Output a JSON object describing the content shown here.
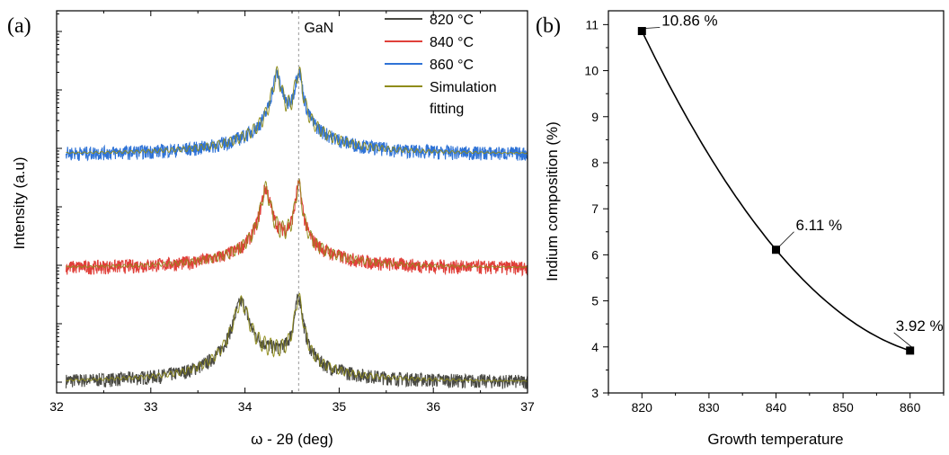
{
  "chart_data": [
    {
      "panel": "(a)",
      "type": "line",
      "xlabel": "ω - 2θ (deg)",
      "ylabel": "Intensity (a.u)",
      "xlim": [
        32,
        37
      ],
      "x_ticks": [
        "32",
        "33",
        "34",
        "35",
        "36",
        "37"
      ],
      "y_scale": "log",
      "reference_line": {
        "label": "GaN",
        "x": 34.57
      },
      "legend": {
        "position": "top-right"
      },
      "series": [
        {
          "name": "820 °C",
          "color": "#4a4a44",
          "peak_x": [
            33.96,
            34.57
          ]
        },
        {
          "name": "840 °C",
          "color": "#e0403a",
          "peak_x": [
            34.22,
            34.57
          ]
        },
        {
          "name": "860 °C",
          "color": "#2f73d6",
          "peak_x": [
            34.34,
            34.57
          ]
        },
        {
          "name": "Simulation fitting",
          "color": "#8f8c1a"
        }
      ]
    },
    {
      "panel": "(b)",
      "type": "scatter",
      "xlabel": "Growth temperature",
      "ylabel": "Indium composition (%)",
      "xlim": [
        815,
        865
      ],
      "ylim": [
        3,
        11.3
      ],
      "x_ticks": [
        "820",
        "830",
        "840",
        "850",
        "860"
      ],
      "y_ticks": [
        "3",
        "4",
        "5",
        "6",
        "7",
        "8",
        "9",
        "10",
        "11"
      ],
      "x": [
        820,
        840,
        860
      ],
      "y": [
        10.86,
        6.11,
        3.92
      ],
      "labels": [
        "10.86 %",
        "6.11 %",
        "3.92 %"
      ],
      "fit_line": true
    }
  ]
}
